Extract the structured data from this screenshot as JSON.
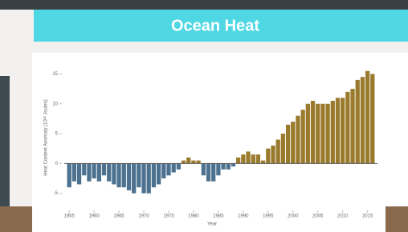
{
  "chart_data": {
    "type": "bar",
    "title": "Ocean Heat",
    "x_label": "Year",
    "y_label": "Heat Content Anomaly (10²² Joules)",
    "x": [
      1955,
      1956,
      1957,
      1958,
      1959,
      1960,
      1961,
      1962,
      1963,
      1964,
      1965,
      1966,
      1967,
      1968,
      1969,
      1970,
      1971,
      1972,
      1973,
      1974,
      1975,
      1976,
      1977,
      1978,
      1979,
      1980,
      1981,
      1982,
      1983,
      1984,
      1985,
      1986,
      1987,
      1988,
      1989,
      1990,
      1991,
      1992,
      1993,
      1994,
      1995,
      1996,
      1997,
      1998,
      1999,
      2000,
      2001,
      2002,
      2003,
      2004,
      2005,
      2006,
      2007,
      2008,
      2009,
      2010,
      2011,
      2012,
      2013,
      2014,
      2015,
      2016
    ],
    "values": [
      -4,
      -3,
      -3.5,
      -2,
      -3,
      -2.5,
      -3,
      -2,
      -3,
      -3.5,
      -4,
      -4,
      -4.5,
      -5,
      -4,
      -5,
      -5,
      -4,
      -3.5,
      -2.5,
      -2,
      -1.5,
      -1,
      0.5,
      1,
      0.5,
      0.5,
      -2,
      -3,
      -3,
      -2,
      -1,
      -1,
      -0.5,
      1,
      1.5,
      2,
      1.5,
      1.5,
      0.5,
      2.5,
      3,
      4,
      5,
      6.5,
      7,
      8,
      9,
      10,
      10.5,
      10,
      10,
      10,
      10.5,
      11,
      11,
      12,
      12.5,
      14,
      14.5,
      15.5,
      15
    ],
    "color": "#9a7a2c",
    "negative_color": "#4d7290",
    "xlim": [
      1954,
      2017
    ],
    "xticks": [
      1955,
      1960,
      1965,
      1970,
      1975,
      1980,
      1985,
      1990,
      1995,
      2000,
      2005,
      2010,
      2015
    ],
    "ylim": [
      -8,
      16
    ],
    "yticks": [
      -5,
      0,
      5,
      10,
      15
    ]
  }
}
